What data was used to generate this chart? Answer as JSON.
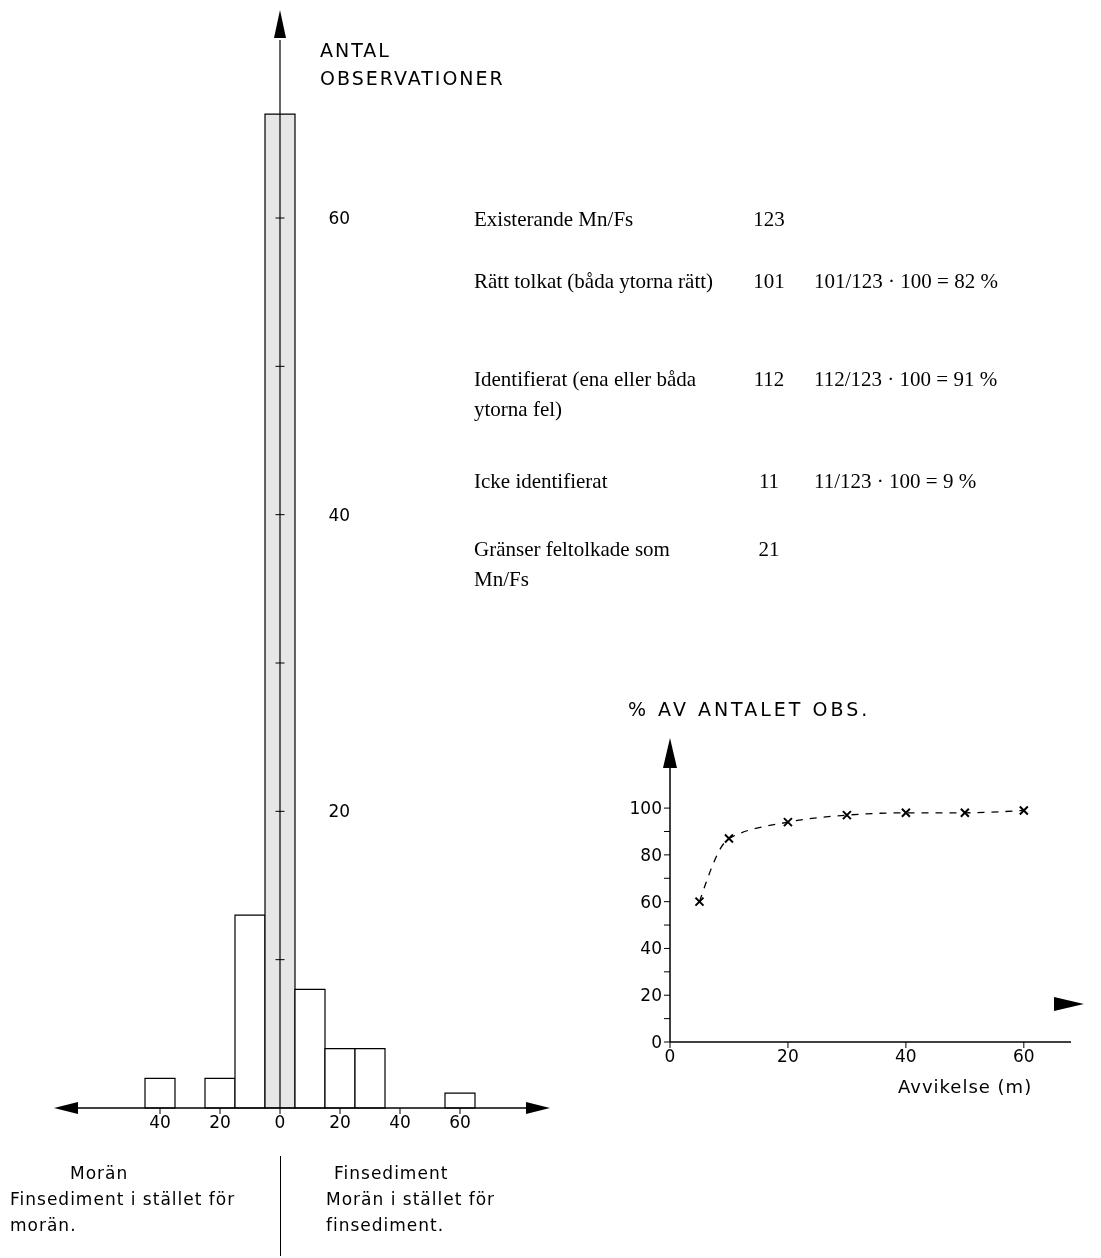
{
  "chart_data": [
    {
      "type": "histogram",
      "ylabel": "ANTAL OBSERVATIONER",
      "bins": [
        -45,
        -35,
        -25,
        -15,
        -5,
        5,
        15,
        25,
        35,
        45,
        55,
        65
      ],
      "values": [
        2,
        0,
        2,
        13,
        67,
        8,
        4,
        4,
        0,
        0,
        1
      ],
      "colors": [
        "#ffffff",
        "#ffffff",
        "#ffffff",
        "#ffffff",
        "#e6e6e6",
        "#ffffff",
        "#ffffff",
        "#ffffff",
        "#ffffff",
        "#ffffff",
        "#ffffff"
      ],
      "xlim": [
        -70,
        85
      ],
      "ylim": [
        0,
        72
      ],
      "xticks": [
        {
          "value": -40,
          "label": "40"
        },
        {
          "value": -20,
          "label": "20"
        },
        0,
        20,
        40,
        60
      ],
      "yticks": [
        {
          "value": 10,
          "label": null
        },
        20,
        {
          "value": 30,
          "label": null
        },
        40,
        {
          "value": 50,
          "label": null
        },
        60
      ],
      "annotations": [
        "Morän",
        "Finsediment i stället för morän.",
        "Finsediment",
        "Morän i stället för finsediment."
      ]
    },
    {
      "type": "other",
      "categories": [
        "Existerande Mn/Fs",
        "Rätt tolkat (båda ytorna rätt)",
        "Identifierat (ena eller båda ytorna fel)",
        "Icke identifierat",
        "Gränser feltolkade som Mn/Fs"
      ],
      "values": [
        123,
        101,
        112,
        11,
        21
      ],
      "data_labels": true,
      "annotations": [
        {
          "text": "101/123 · 100 = 82 %",
          "y": "Rätt tolkat (båda ytorna rätt)"
        },
        {
          "text": "112/123 · 100 = 91 %",
          "y": "Identifierat (ena eller båda ytorna fel)"
        },
        {
          "text": "11/123 · 100 = 9 %",
          "y": "Icke identifierat"
        }
      ]
    },
    {
      "type": "line",
      "ylabel": "% AV ANTALET OBS.",
      "xlabel": "Avvikelse (m)",
      "x": [
        5,
        10,
        20,
        30,
        40,
        50,
        60
      ],
      "series": [
        {
          "color": "#000000",
          "values": [
            60,
            87,
            94,
            97,
            98,
            98,
            99
          ]
        }
      ],
      "marker": "cross",
      "line_style": "dashed",
      "xlim": [
        0,
        68
      ],
      "ylim": [
        0,
        118
      ],
      "xticks": [
        0,
        20,
        40,
        60
      ],
      "yticks": [
        0,
        {
          "value": 10,
          "label": null
        },
        20,
        {
          "value": 30,
          "label": null
        },
        40,
        {
          "value": 50,
          "label": null
        },
        60,
        {
          "value": 70,
          "label": null
        },
        80,
        {
          "value": 90,
          "label": null
        },
        100
      ]
    }
  ]
}
